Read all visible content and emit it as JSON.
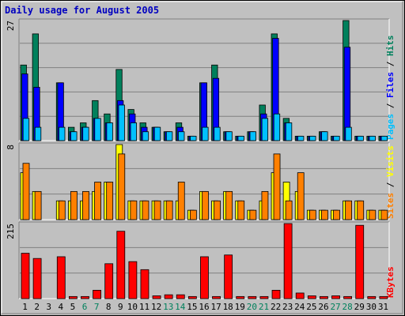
{
  "chart_data": [
    {
      "type": "bar",
      "title": "Daily usage for August 2005",
      "ymax_label": "27",
      "y_axis_label_parts": [
        "Pages",
        " / ",
        "Files",
        " / ",
        "Hits"
      ],
      "categories": [
        "1",
        "2",
        "3",
        "4",
        "5",
        "6",
        "7",
        "8",
        "9",
        "10",
        "11",
        "12",
        "13",
        "14",
        "15",
        "16",
        "17",
        "18",
        "19",
        "20",
        "21",
        "22",
        "23",
        "24",
        "25",
        "26",
        "27",
        "28",
        "29",
        "30",
        "31"
      ],
      "weekend_days": [
        "6",
        "7",
        "13",
        "14",
        "20",
        "21",
        "27",
        "28"
      ],
      "ylim": [
        0,
        27
      ],
      "series": [
        {
          "name": "Hits",
          "color": "#00805c",
          "values": [
            17,
            24,
            0,
            13,
            3,
            4,
            9,
            6,
            16,
            7,
            4,
            3,
            2,
            4,
            1,
            13,
            17,
            2,
            1,
            2,
            8,
            24,
            5,
            1,
            1,
            2,
            1,
            27,
            1,
            1,
            1
          ]
        },
        {
          "name": "Files",
          "color": "#0000ff",
          "values": [
            15,
            12,
            0,
            13,
            2,
            3,
            5,
            4,
            9,
            6,
            3,
            3,
            2,
            3,
            1,
            13,
            14,
            2,
            1,
            2,
            6,
            23,
            4,
            1,
            1,
            2,
            1,
            21,
            1,
            1,
            1
          ]
        },
        {
          "name": "Pages",
          "color": "#00c0ff",
          "values": [
            5,
            3,
            0,
            3,
            2,
            3,
            5,
            4,
            8,
            4,
            2,
            3,
            2,
            2,
            1,
            3,
            3,
            2,
            1,
            2,
            5,
            6,
            4,
            1,
            1,
            2,
            1,
            3,
            1,
            1,
            1
          ]
        }
      ]
    },
    {
      "type": "bar",
      "ymax_label": "8",
      "y_axis_label_parts": [
        "Sites",
        " / ",
        "Visits"
      ],
      "categories": [
        "1",
        "2",
        "3",
        "4",
        "5",
        "6",
        "7",
        "8",
        "9",
        "10",
        "11",
        "12",
        "13",
        "14",
        "15",
        "16",
        "17",
        "18",
        "19",
        "20",
        "21",
        "22",
        "23",
        "24",
        "25",
        "26",
        "27",
        "28",
        "29",
        "30",
        "31"
      ],
      "ylim": [
        0,
        8
      ],
      "series": [
        {
          "name": "Visits",
          "color": "#ffff00",
          "values": [
            5,
            3,
            0,
            2,
            2,
            2,
            3,
            4,
            8,
            2,
            2,
            2,
            2,
            2,
            1,
            3,
            2,
            3,
            2,
            1,
            2,
            5,
            4,
            3,
            1,
            1,
            1,
            2,
            2,
            1,
            1
          ]
        },
        {
          "name": "Sites",
          "color": "#ff8000",
          "values": [
            6,
            3,
            0,
            2,
            3,
            3,
            4,
            4,
            7,
            2,
            2,
            2,
            2,
            4,
            1,
            3,
            2,
            3,
            2,
            1,
            3,
            7,
            2,
            5,
            1,
            1,
            1,
            2,
            2,
            1,
            1
          ]
        }
      ]
    },
    {
      "type": "bar",
      "ymax_label": "215",
      "y_axis_label_parts": [
        "KBytes"
      ],
      "categories": [
        "1",
        "2",
        "3",
        "4",
        "5",
        "6",
        "7",
        "8",
        "9",
        "10",
        "11",
        "12",
        "13",
        "14",
        "15",
        "16",
        "17",
        "18",
        "19",
        "20",
        "21",
        "22",
        "23",
        "24",
        "25",
        "26",
        "27",
        "28",
        "29",
        "30",
        "31"
      ],
      "ylim": [
        0,
        215
      ],
      "series": [
        {
          "name": "KBytes",
          "color": "#ff0000",
          "values": [
            130,
            115,
            0,
            120,
            6,
            6,
            24,
            100,
            193,
            106,
            83,
            8,
            11,
            11,
            6,
            120,
            6,
            125,
            6,
            6,
            6,
            24,
            215,
            16,
            8,
            6,
            8,
            6,
            210,
            6,
            6
          ]
        }
      ]
    }
  ]
}
